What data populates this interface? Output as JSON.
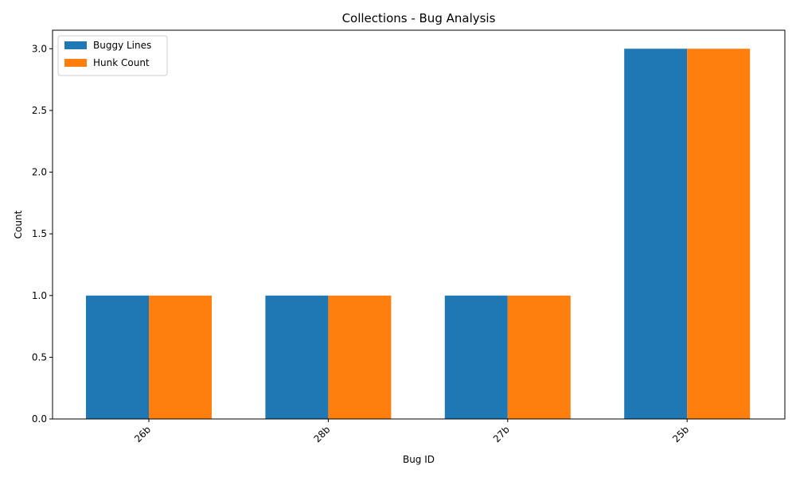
{
  "chart_data": {
    "type": "bar",
    "title": "Collections - Bug Analysis",
    "xlabel": "Bug ID",
    "ylabel": "Count",
    "categories": [
      "26b",
      "28b",
      "27b",
      "25b"
    ],
    "series": [
      {
        "name": "Buggy Lines",
        "values": [
          1,
          1,
          1,
          3
        ],
        "color": "#1f77b4"
      },
      {
        "name": "Hunk Count",
        "values": [
          1,
          1,
          1,
          3
        ],
        "color": "#ff7f0e"
      }
    ],
    "ylim": [
      0,
      3.15
    ],
    "yticks": [
      "0.0",
      "0.5",
      "1.0",
      "1.5",
      "2.0",
      "2.5",
      "3.0"
    ],
    "grid": false,
    "legend_position": "top-left"
  }
}
